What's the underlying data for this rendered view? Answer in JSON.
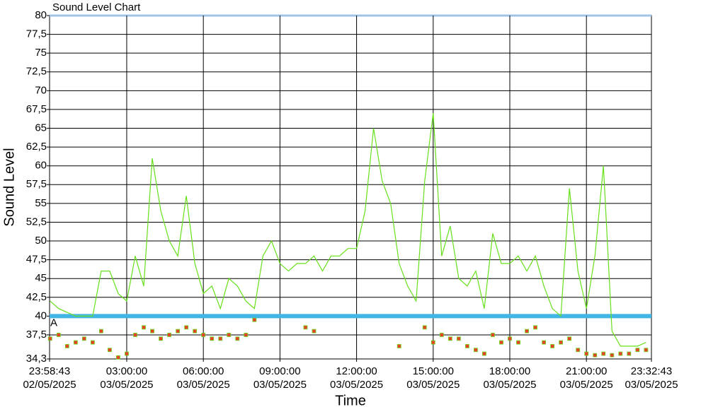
{
  "chart_data": {
    "type": "line",
    "title": "Sound Level Chart",
    "x_label": "Time",
    "y_label": "Sound Level",
    "x": [
      "2025-05-03T00:00:00",
      "2025-05-03T00:20:00",
      "2025-05-03T00:40:00",
      "2025-05-03T01:00:00",
      "2025-05-03T01:20:00",
      "2025-05-03T01:40:00",
      "2025-05-03T02:00:00",
      "2025-05-03T02:20:00",
      "2025-05-03T02:40:00",
      "2025-05-03T03:00:00",
      "2025-05-03T03:20:00",
      "2025-05-03T03:40:00",
      "2025-05-03T04:00:00",
      "2025-05-03T04:20:00",
      "2025-05-03T04:40:00",
      "2025-05-03T05:00:00",
      "2025-05-03T05:20:00",
      "2025-05-03T05:40:00",
      "2025-05-03T06:00:00",
      "2025-05-03T06:20:00",
      "2025-05-03T06:40:00",
      "2025-05-03T07:00:00",
      "2025-05-03T07:20:00",
      "2025-05-03T07:40:00",
      "2025-05-03T08:00:00",
      "2025-05-03T08:20:00",
      "2025-05-03T08:40:00",
      "2025-05-03T09:00:00",
      "2025-05-03T09:20:00",
      "2025-05-03T09:40:00",
      "2025-05-03T10:00:00",
      "2025-05-03T10:20:00",
      "2025-05-03T10:40:00",
      "2025-05-03T11:00:00",
      "2025-05-03T11:20:00",
      "2025-05-03T11:40:00",
      "2025-05-03T12:00:00",
      "2025-05-03T12:20:00",
      "2025-05-03T12:40:00",
      "2025-05-03T13:00:00",
      "2025-05-03T13:20:00",
      "2025-05-03T13:40:00",
      "2025-05-03T14:00:00",
      "2025-05-03T14:20:00",
      "2025-05-03T14:40:00",
      "2025-05-03T15:00:00",
      "2025-05-03T15:20:00",
      "2025-05-03T15:40:00",
      "2025-05-03T16:00:00",
      "2025-05-03T16:20:00",
      "2025-05-03T16:40:00",
      "2025-05-03T17:00:00",
      "2025-05-03T17:20:00",
      "2025-05-03T17:40:00",
      "2025-05-03T18:00:00",
      "2025-05-03T18:20:00",
      "2025-05-03T18:40:00",
      "2025-05-03T19:00:00",
      "2025-05-03T19:20:00",
      "2025-05-03T19:40:00",
      "2025-05-03T20:00:00",
      "2025-05-03T20:20:00",
      "2025-05-03T20:40:00",
      "2025-05-03T21:00:00",
      "2025-05-03T21:20:00",
      "2025-05-03T21:40:00",
      "2025-05-03T22:00:00",
      "2025-05-03T22:20:00",
      "2025-05-03T22:40:00",
      "2025-05-03T23:00:00",
      "2025-05-03T23:20:00"
    ],
    "series": [
      {
        "color": "#66e01a",
        "values": [
          42,
          41,
          40.5,
          40,
          40,
          40,
          46,
          46,
          43,
          42,
          48,
          44,
          61,
          54,
          50,
          48,
          56,
          47,
          43,
          44,
          41,
          45,
          44,
          42,
          41,
          48,
          50,
          47,
          46,
          47,
          47,
          48,
          46,
          48,
          48,
          49,
          49,
          54,
          65,
          58,
          55,
          47,
          44,
          42,
          58,
          67,
          48,
          52,
          45,
          44,
          46,
          41,
          51,
          47,
          47,
          48,
          46,
          48,
          44,
          41,
          40,
          57,
          46,
          41,
          48,
          60,
          38,
          36,
          36,
          36,
          36.5
        ]
      },
      {
        "color": "#e8402a",
        "values": [
          37,
          37.5,
          36,
          36.5,
          37,
          36.5,
          38,
          35.5,
          34.5,
          35,
          37.5,
          38.5,
          38,
          37,
          37.5,
          38,
          38.5,
          38,
          37.5,
          37,
          37,
          37.5,
          37,
          37.5,
          39.5,
          null,
          null,
          null,
          null,
          null,
          38.5,
          38,
          null,
          null,
          null,
          null,
          null,
          null,
          null,
          null,
          null,
          36,
          null,
          null,
          38.5,
          36.5,
          37.5,
          37,
          37,
          36,
          35.5,
          35,
          37.5,
          36.5,
          37,
          36.5,
          38,
          38.5,
          36.5,
          36,
          36.5,
          37,
          35.5,
          35,
          34.8,
          35,
          34.8,
          35,
          35,
          35.5,
          35.5
        ]
      }
    ],
    "threshold": {
      "value": 40,
      "color": "#41b6e6",
      "label": "A"
    },
    "xlim": [
      "2025-05-02T23:58:43",
      "2025-05-03T23:32:43"
    ],
    "xticks": [
      {
        "value": "2025-05-02T23:58:43",
        "label": "23:58:43\n02/05/2025"
      },
      {
        "value": "2025-05-03T03:00:00",
        "label": "03:00:00\n03/05/2025"
      },
      {
        "value": "2025-05-03T06:00:00",
        "label": "06:00:00\n03/05/2025"
      },
      {
        "value": "2025-05-03T09:00:00",
        "label": "09:00:00\n03/05/2025"
      },
      {
        "value": "2025-05-03T12:00:00",
        "label": "12:00:00\n03/05/2025"
      },
      {
        "value": "2025-05-03T15:00:00",
        "label": "15:00:00\n03/05/2025"
      },
      {
        "value": "2025-05-03T18:00:00",
        "label": "18:00:00\n03/05/2025"
      },
      {
        "value": "2025-05-03T21:00:00",
        "label": "21:00:00\n03/05/2025"
      },
      {
        "value": "2025-05-03T23:32:43",
        "label": "23:32:43\n03/05/2025"
      }
    ],
    "ylim": [
      34.3,
      80
    ],
    "yticks": [
      {
        "value": 34.3,
        "label": "34,3"
      },
      {
        "value": 37.5,
        "label": "37,5"
      },
      40,
      {
        "value": 42.5,
        "label": "42,5"
      },
      45,
      {
        "value": 47.5,
        "label": "47,5"
      },
      50,
      {
        "value": 52.5,
        "label": "52,5"
      },
      55,
      {
        "value": 57.5,
        "label": "57,5"
      },
      60,
      {
        "value": 62.5,
        "label": "62,5"
      },
      65,
      {
        "value": 67.5,
        "label": "67,5"
      },
      70,
      {
        "value": 72.5,
        "label": "72,5"
      },
      75,
      {
        "value": 77.5,
        "label": "77,5"
      },
      80
    ],
    "grid": true
  }
}
